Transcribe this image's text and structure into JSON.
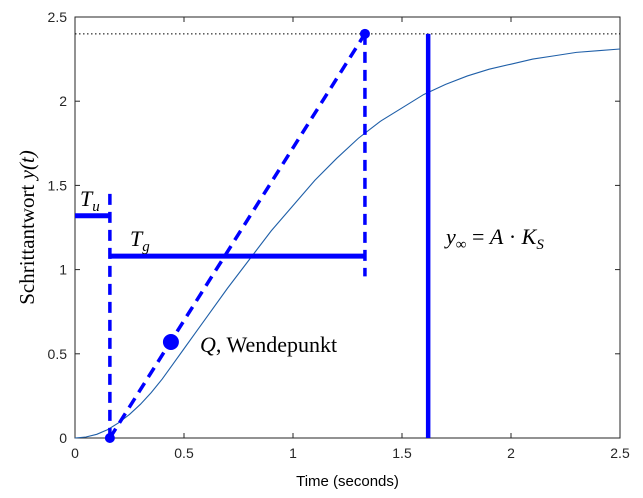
{
  "chart_data": {
    "type": "line",
    "xlabel": "Time (seconds)",
    "ylabel": "Schrittantwort",
    "ylabel_math": "y(t)",
    "xlim": [
      0,
      2.5
    ],
    "ylim": [
      0,
      2.5
    ],
    "xticks": [
      "0",
      "0.5",
      "1",
      "1.5",
      "2",
      "2.5"
    ],
    "yticks": [
      "0",
      "0.5",
      "1",
      "1.5",
      "2",
      "2.5"
    ],
    "grid": false,
    "colors": {
      "response": "#1f5fa8",
      "annotation": "#0000ff",
      "axes": "#262626"
    },
    "response": {
      "x": [
        0,
        0.05,
        0.1,
        0.15,
        0.2,
        0.25,
        0.3,
        0.35,
        0.4,
        0.45,
        0.5,
        0.55,
        0.6,
        0.7,
        0.8,
        0.9,
        1.0,
        1.1,
        1.2,
        1.3,
        1.4,
        1.5,
        1.6,
        1.7,
        1.8,
        1.9,
        2.0,
        2.1,
        2.2,
        2.3,
        2.4,
        2.5
      ],
      "y": [
        0,
        0.006,
        0.022,
        0.05,
        0.09,
        0.14,
        0.2,
        0.27,
        0.35,
        0.44,
        0.53,
        0.62,
        0.71,
        0.89,
        1.06,
        1.23,
        1.38,
        1.53,
        1.66,
        1.78,
        1.88,
        1.96,
        2.04,
        2.1,
        2.15,
        2.19,
        2.22,
        2.25,
        2.27,
        2.29,
        2.3,
        2.31
      ]
    },
    "final_value": 2.4,
    "inflection": {
      "x": 0.44,
      "y": 0.57
    },
    "tangent": {
      "x0": 0.16,
      "y0": 0,
      "x1": 1.33,
      "y1": 2.4
    },
    "Tu": {
      "x0": 0,
      "x1": 0.16,
      "y": 1.32,
      "marker_y_top": 1.45
    },
    "Tg": {
      "x0": 0.16,
      "x1": 1.33,
      "y": 1.08,
      "marker_y_top": 1.11,
      "marker_y_bottom": 0.96
    },
    "y_inf_line": {
      "x": 1.62,
      "y0": 0,
      "y1": 2.4
    },
    "labels": {
      "Tu": {
        "main": "T",
        "sub": "u"
      },
      "Tg": {
        "main": "T",
        "sub": "g"
      },
      "Q_symbol": "Q",
      "Q_text": ", Wendepunkt",
      "y_inf": {
        "y": "y",
        "inf": "∞",
        "eq": " = ",
        "A": "A",
        "dot": " · ",
        "K": "K",
        "S": "S"
      }
    }
  }
}
